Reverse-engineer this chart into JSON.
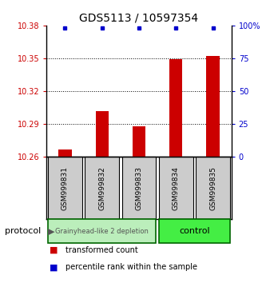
{
  "title": "GDS5113 / 10597354",
  "samples": [
    "GSM999831",
    "GSM999832",
    "GSM999833",
    "GSM999834",
    "GSM999835"
  ],
  "bar_values": [
    10.267,
    10.302,
    10.288,
    10.349,
    10.352
  ],
  "percentile_values": [
    99,
    99,
    99,
    99,
    99
  ],
  "ylim_left": [
    10.26,
    10.38
  ],
  "ylim_right": [
    0,
    100
  ],
  "yticks_left": [
    10.26,
    10.29,
    10.32,
    10.35,
    10.38
  ],
  "yticks_right": [
    0,
    25,
    50,
    75,
    100
  ],
  "ytick_labels_left": [
    "10.26",
    "10.29",
    "10.32",
    "10.35",
    "10.38"
  ],
  "ytick_labels_right": [
    "0",
    "25",
    "50",
    "75",
    "100%"
  ],
  "bar_color": "#cc0000",
  "dot_color": "#0000cc",
  "grid_color": "#000000",
  "group1_color": "#bbeebb",
  "group2_color": "#44ee44",
  "group1_label": "Grainyhead-like 2 depletion",
  "group2_label": "control",
  "group1_samples": [
    0,
    1,
    2
  ],
  "group2_samples": [
    3,
    4
  ],
  "legend_bar_label": "transformed count",
  "legend_dot_label": "percentile rank within the sample",
  "protocol_label": "protocol",
  "left_tick_color": "#cc0000",
  "right_tick_color": "#0000cc",
  "bar_width": 0.35,
  "figsize": [
    3.33,
    3.54
  ],
  "dpi": 100
}
